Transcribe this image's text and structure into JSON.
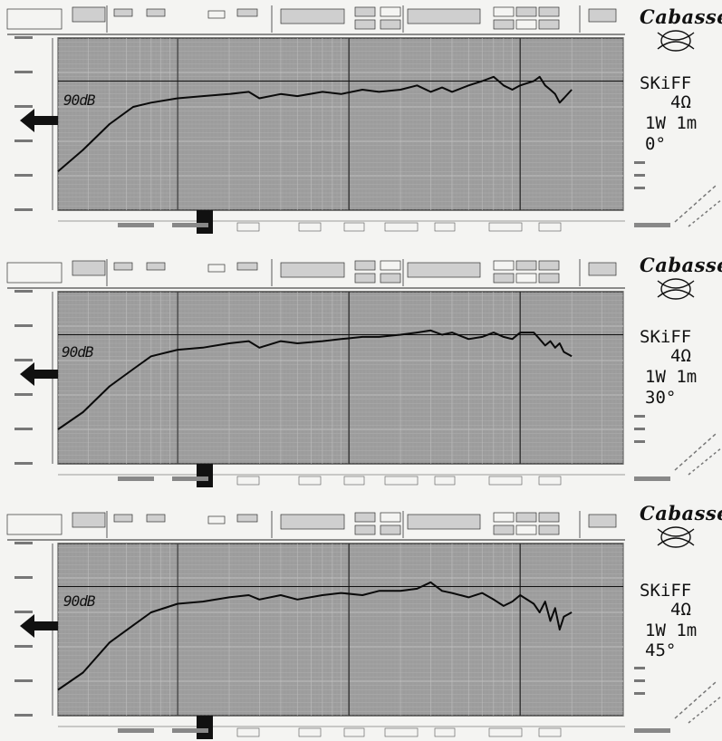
{
  "brand": {
    "name": "Cabasse"
  },
  "chart_data": [
    {
      "type": "line",
      "reference_label": "90dB",
      "annotation": [
        "SKiFF",
        "4Ω",
        "1W 1m",
        "0°"
      ],
      "grid": true,
      "y_reference": 90,
      "ylim": [
        60,
        100
      ],
      "series": [
        {
          "points": [
            [
              20,
              69
            ],
            [
              28,
              74
            ],
            [
              40,
              80
            ],
            [
              55,
              84
            ],
            [
              70,
              85
            ],
            [
              100,
              86
            ],
            [
              140,
              86.5
            ],
            [
              200,
              87
            ],
            [
              260,
              87.5
            ],
            [
              300,
              86
            ],
            [
              400,
              87
            ],
            [
              500,
              86.5
            ],
            [
              700,
              87.5
            ],
            [
              900,
              87
            ],
            [
              1200,
              88
            ],
            [
              1500,
              87.5
            ],
            [
              2000,
              88
            ],
            [
              2500,
              89
            ],
            [
              3000,
              87.5
            ],
            [
              3500,
              88.5
            ],
            [
              4000,
              87.5
            ],
            [
              5000,
              89
            ],
            [
              6000,
              90
            ],
            [
              7000,
              91
            ],
            [
              8000,
              89
            ],
            [
              9000,
              88
            ],
            [
              10000,
              89
            ],
            [
              12000,
              90
            ],
            [
              13000,
              91
            ],
            [
              14000,
              89
            ],
            [
              15000,
              88
            ],
            [
              16000,
              87
            ],
            [
              17000,
              85
            ],
            [
              18000,
              86
            ],
            [
              20000,
              88
            ]
          ]
        }
      ],
      "colors": {
        "plot_bg": "#9c9c9c",
        "trace": "#0a0a0a"
      }
    },
    {
      "type": "line",
      "reference_label": "90dB",
      "annotation": [
        "SKiFF",
        "4Ω",
        "1W 1m",
        "30°"
      ],
      "grid": true,
      "y_reference": 90,
      "ylim": [
        60,
        100
      ],
      "series": [
        {
          "points": [
            [
              20,
              68
            ],
            [
              28,
              72
            ],
            [
              40,
              78
            ],
            [
              55,
              82
            ],
            [
              70,
              85
            ],
            [
              100,
              86.5
            ],
            [
              140,
              87
            ],
            [
              200,
              88
            ],
            [
              260,
              88.5
            ],
            [
              300,
              87
            ],
            [
              400,
              88.5
            ],
            [
              500,
              88
            ],
            [
              700,
              88.5
            ],
            [
              900,
              89
            ],
            [
              1200,
              89.5
            ],
            [
              1500,
              89.5
            ],
            [
              2000,
              90
            ],
            [
              2500,
              90.5
            ],
            [
              3000,
              91
            ],
            [
              3500,
              90
            ],
            [
              4000,
              90.5
            ],
            [
              5000,
              89
            ],
            [
              6000,
              89.5
            ],
            [
              7000,
              90.5
            ],
            [
              8000,
              89.5
            ],
            [
              9000,
              89
            ],
            [
              10000,
              90.5
            ],
            [
              12000,
              90.5
            ],
            [
              13000,
              89
            ],
            [
              14000,
              87.5
            ],
            [
              15000,
              88.5
            ],
            [
              16000,
              87
            ],
            [
              17000,
              88
            ],
            [
              18000,
              86
            ],
            [
              20000,
              85
            ]
          ]
        }
      ],
      "colors": {
        "plot_bg": "#9c9c9c",
        "trace": "#0a0a0a"
      }
    },
    {
      "type": "line",
      "reference_label": "90dB",
      "annotation": [
        "SKiFF",
        "4Ω",
        "1W 1m",
        "45°"
      ],
      "grid": true,
      "y_reference": 90,
      "ylim": [
        60,
        100
      ],
      "series": [
        {
          "points": [
            [
              20,
              66
            ],
            [
              28,
              70
            ],
            [
              40,
              77
            ],
            [
              55,
              81
            ],
            [
              70,
              84
            ],
            [
              100,
              86
            ],
            [
              140,
              86.5
            ],
            [
              200,
              87.5
            ],
            [
              260,
              88
            ],
            [
              300,
              87
            ],
            [
              400,
              88
            ],
            [
              500,
              87
            ],
            [
              700,
              88
            ],
            [
              900,
              88.5
            ],
            [
              1200,
              88
            ],
            [
              1500,
              89
            ],
            [
              2000,
              89
            ],
            [
              2500,
              89.5
            ],
            [
              3000,
              91
            ],
            [
              3500,
              89
            ],
            [
              4000,
              88.5
            ],
            [
              5000,
              87.5
            ],
            [
              6000,
              88.5
            ],
            [
              7000,
              87
            ],
            [
              8000,
              85.5
            ],
            [
              9000,
              86.5
            ],
            [
              10000,
              88
            ],
            [
              12000,
              86
            ],
            [
              13000,
              84
            ],
            [
              14000,
              86.5
            ],
            [
              15000,
              82
            ],
            [
              16000,
              85
            ],
            [
              17000,
              80
            ],
            [
              18000,
              83
            ],
            [
              20000,
              84
            ]
          ]
        }
      ],
      "colors": {
        "plot_bg": "#9c9c9c",
        "trace": "#0a0a0a"
      }
    }
  ]
}
